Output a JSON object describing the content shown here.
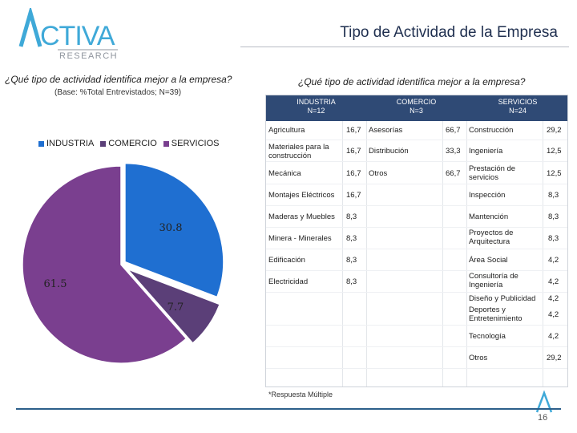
{
  "logo": {
    "main": "ACTIVA",
    "sub": "RESEARCH"
  },
  "title": "Tipo de Actividad de la Empresa",
  "left": {
    "question": "¿Qué tipo de actividad identifica mejor a la empresa?",
    "base": "(Base: %Total Entrevistados; N=39)"
  },
  "colors": {
    "industria": "#1f6fd1",
    "comercio": "#5b3f78",
    "servicios": "#7a3f8f",
    "header": "#2f4a75"
  },
  "chart_data": {
    "type": "pie",
    "title": "",
    "categories": [
      "INDUSTRIA",
      "COMERCIO",
      "SERVICIOS"
    ],
    "values": [
      30.8,
      7.7,
      61.5
    ],
    "labels": [
      "30.8",
      "7.7",
      "61.5"
    ],
    "legend_position": "top"
  },
  "right": {
    "question": "¿Qué tipo de actividad identifica mejor a la empresa?",
    "headers": [
      {
        "name": "INDUSTRIA",
        "n": "N=12"
      },
      {
        "name": "COMERCIO",
        "n": "N=3"
      },
      {
        "name": "SERVICIOS",
        "n": "N=24"
      }
    ],
    "industria": [
      {
        "label": "Agricultura",
        "value": "16,7"
      },
      {
        "label": "Materiales para la construcción",
        "value": "16,7"
      },
      {
        "label": "Mecánica",
        "value": "16,7"
      },
      {
        "label": "Montajes Eléctricos",
        "value": "16,7"
      },
      {
        "label": "Maderas y Muebles",
        "value": "8,3"
      },
      {
        "label": "Minera - Minerales",
        "value": "8,3"
      },
      {
        "label": "Edificación",
        "value": "8,3"
      },
      {
        "label": "Electricidad",
        "value": "8,3"
      }
    ],
    "comercio": [
      {
        "label": "Asesorías",
        "value": "66,7"
      },
      {
        "label": "Distribución",
        "value": "33,3"
      },
      {
        "label": "Otros",
        "value": "66,7"
      }
    ],
    "servicios": [
      {
        "label": "Construcción",
        "value": "29,2"
      },
      {
        "label": "Ingeniería",
        "value": "12,5"
      },
      {
        "label": "Prestación de servicios",
        "value": "12,5"
      },
      {
        "label": "Inspección",
        "value": "8,3"
      },
      {
        "label": "Mantención",
        "value": "8,3"
      },
      {
        "label": "Proyectos de Arquitectura",
        "value": "8,3"
      },
      {
        "label": "Área Social",
        "value": "4,2"
      },
      {
        "label": "Consultoría de Ingeniería",
        "value": "4,2"
      },
      {
        "label": "Diseño y Publicidad",
        "value": "4,2"
      },
      {
        "label": "Deportes y Entretenimiento",
        "value": "4,2"
      },
      {
        "label": "Tecnología",
        "value": "4,2"
      },
      {
        "label": "Otros",
        "value": "29,2"
      }
    ],
    "footnote": "*Respuesta Múltiple"
  },
  "page_number": "16"
}
